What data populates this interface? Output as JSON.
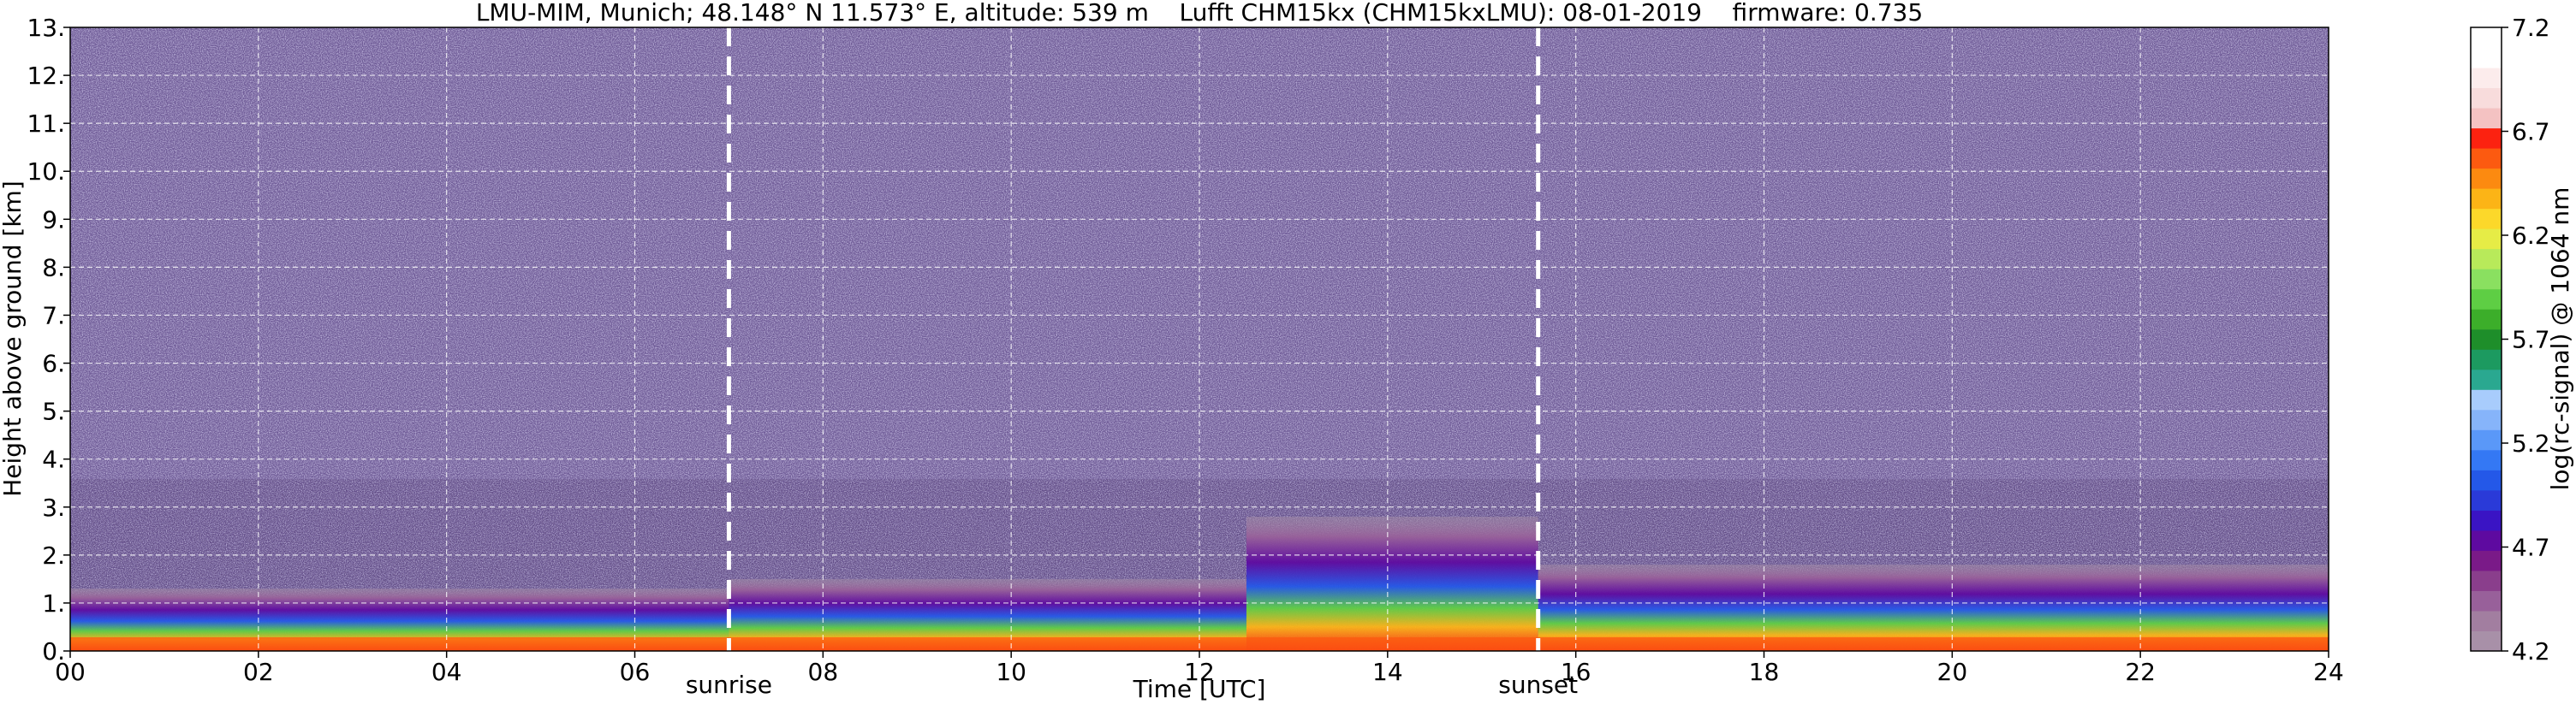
{
  "chart_data": {
    "type": "heatmap",
    "title": "LMU-MIM, Munich; 48.148° N 11.573° E, altitude: 539 m    Lufft CHM15kx (CHM15kxLMU): 08-01-2019    firmware: 0.735",
    "xlabel": "Time [UTC]",
    "ylabel": "Height above ground [km]",
    "xlim": [
      0,
      24
    ],
    "ylim": [
      0,
      13
    ],
    "x_ticks": [
      0,
      2,
      4,
      6,
      8,
      10,
      12,
      14,
      16,
      18,
      20,
      22,
      24
    ],
    "x_tick_labels": [
      "00",
      "02",
      "04",
      "06",
      "08",
      "10",
      "12",
      "14",
      "16",
      "18",
      "20",
      "22",
      "24"
    ],
    "y_ticks": [
      0,
      1,
      2,
      3,
      4,
      5,
      6,
      7,
      8,
      9,
      10,
      11,
      12,
      13
    ],
    "y_tick_labels": [
      "0.",
      "1.",
      "2.",
      "3.",
      "4.",
      "5.",
      "6.",
      "7.",
      "8.",
      "9.",
      "10.",
      "11.",
      "12.",
      "13."
    ],
    "grid": true,
    "annotations": [
      {
        "label": "sunrise",
        "x": 7.0
      },
      {
        "label": "sunset",
        "x": 15.6
      }
    ],
    "colorbar": {
      "label": "log(rc-signal) @ 1064 nm",
      "min": 4.2,
      "max": 7.2,
      "ticks": [
        4.2,
        4.7,
        5.2,
        5.7,
        6.2,
        6.7,
        7.2
      ],
      "tick_labels": [
        "4.2",
        "4.7",
        "5.2",
        "5.7",
        "6.2",
        "6.7",
        "7.2"
      ],
      "colors": [
        "#a890a8",
        "#a27ea0",
        "#98609a",
        "#8a3e8c",
        "#7a1a88",
        "#5e0aa0",
        "#3a14c4",
        "#2a3ad8",
        "#2458e8",
        "#3478f4",
        "#5a98f8",
        "#86b4fa",
        "#a8ccfc",
        "#2aa890",
        "#1c9a60",
        "#1e8e2a",
        "#3cae2a",
        "#5ece44",
        "#8ae060",
        "#b8ea5a",
        "#e6ec46",
        "#fcd82a",
        "#fcb416",
        "#fc8a10",
        "#fc5a10",
        "#fc2210",
        "#f4c2c2",
        "#f8dcdc",
        "#fcecec",
        "#ffffff",
        "#ffffff"
      ]
    },
    "layers": [
      {
        "name": "noise-background",
        "y_top": 13.0,
        "value": 4.5
      },
      {
        "name": "boundary-layer",
        "segments": [
          {
            "x": [
              0,
              7
            ],
            "height": 1.3
          },
          {
            "x": [
              7,
              12.5
            ],
            "height": 1.5
          },
          {
            "x": [
              12.5,
              15.6
            ],
            "height": 2.8
          },
          {
            "x": [
              15.6,
              24
            ],
            "height": 1.8
          }
        ]
      }
    ]
  }
}
